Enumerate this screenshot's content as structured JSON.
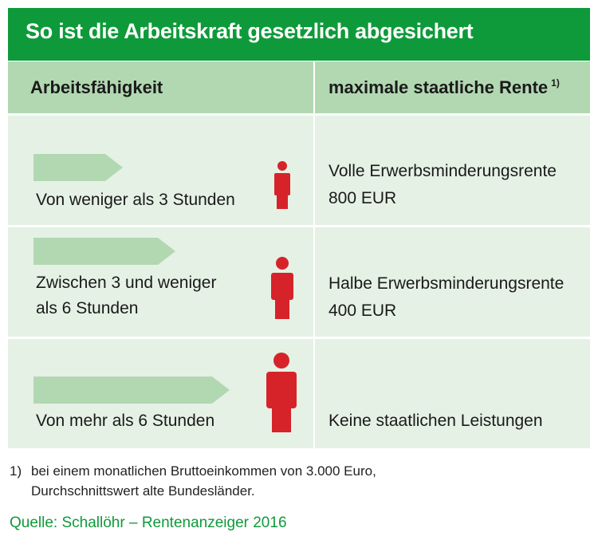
{
  "title": "So ist die Arbeitskraft gesetzlich abgesichert",
  "table": {
    "header": {
      "left": "Arbeitsfähigkeit",
      "right": "maximale staatliche Rente",
      "right_footnote": "1)"
    },
    "rows": [
      {
        "condition_line1": "Von weniger als 3 Stunden",
        "condition_line2": "",
        "pension_line1": "Volle Erwerbsminderungsrente",
        "pension_line2": "800 EUR"
      },
      {
        "condition_line1": "Zwischen 3 und weniger",
        "condition_line2": "als 6 Stunden",
        "pension_line1": "Halbe Erwerbsminderungsrente",
        "pension_line2": "400 EUR"
      },
      {
        "condition_line1": "Von mehr als 6 Stunden",
        "condition_line2": "",
        "pension_line1": "",
        "pension_line2": "Keine staatlichen Leistungen"
      }
    ]
  },
  "footnote": {
    "number": "1)",
    "line1": "bei einem monatlichen Bruttoeinkommen von 3.000 Euro,",
    "line2": "Durchschnittswert alte Bundesländer."
  },
  "source": "Quelle: Schallöhr – Rentenanzeiger 2016",
  "colors": {
    "title_bg": "#0e9a3a",
    "header_bg": "#b2d8b2",
    "row_bg": "#e5f1e5",
    "arrow": "#b2d8b2",
    "person": "#d6232a",
    "source_text": "#0e9a3a"
  },
  "icons": {
    "arrow": "arrow-right-icon",
    "person": "person-icon"
  }
}
